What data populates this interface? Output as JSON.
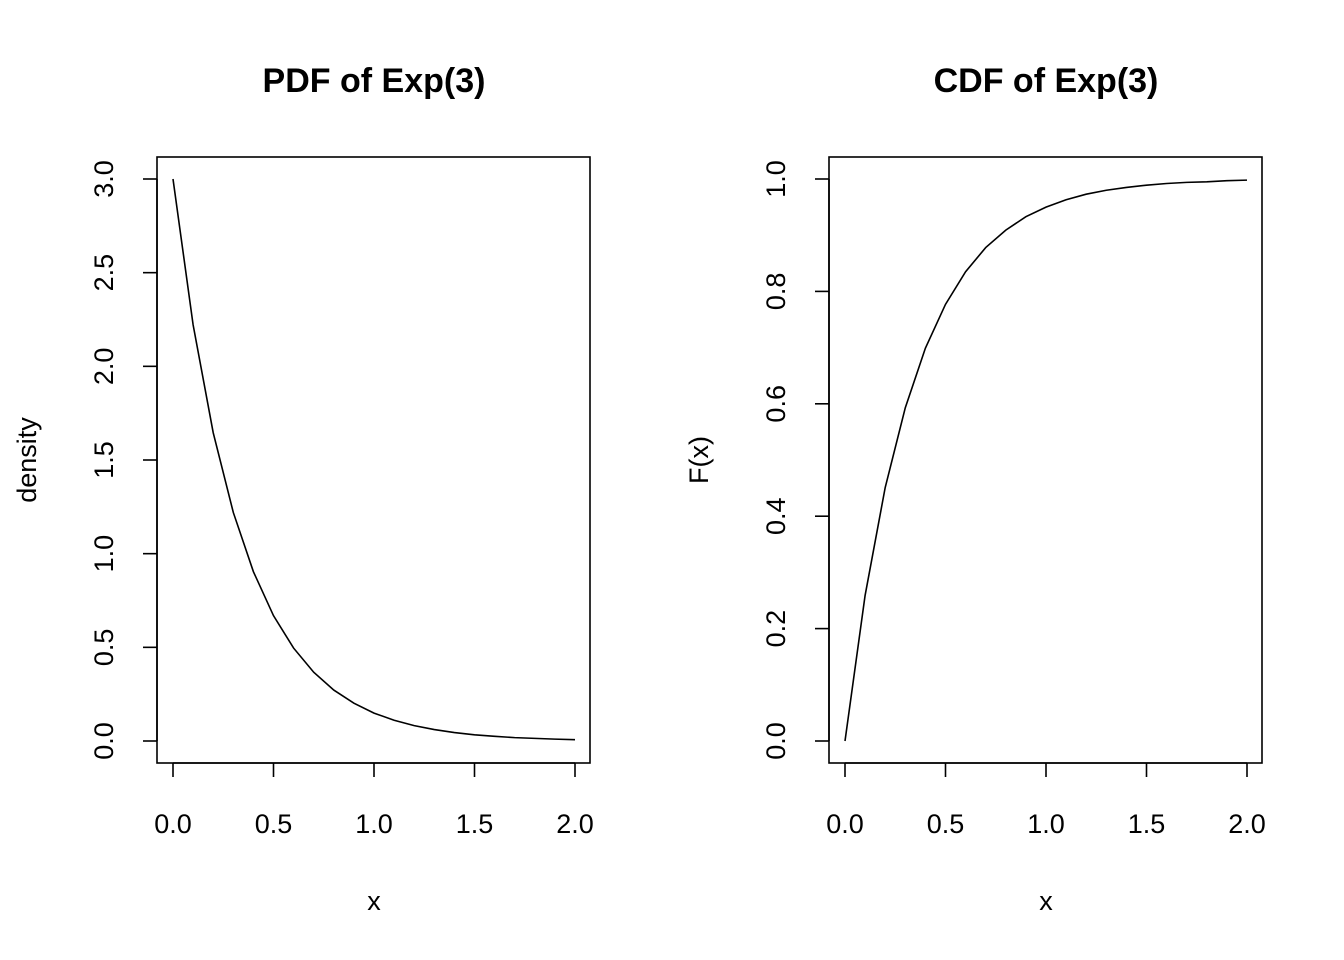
{
  "chart_data": [
    {
      "type": "line",
      "title": "PDF of Exp(3)",
      "xlabel": "x",
      "ylabel": "density",
      "xlim": [
        0,
        2
      ],
      "ylim": [
        0,
        3
      ],
      "x_ticks": [
        0.0,
        0.5,
        1.0,
        1.5,
        2.0
      ],
      "x_tick_labels": [
        "0.0",
        "0.5",
        "1.0",
        "1.5",
        "2.0"
      ],
      "y_ticks": [
        0.0,
        0.5,
        1.0,
        1.5,
        2.0,
        2.5,
        3.0
      ],
      "y_tick_labels": [
        "0.0",
        "0.5",
        "1.0",
        "1.5",
        "2.0",
        "2.5",
        "3.0"
      ],
      "grid": false,
      "series": [
        {
          "x": [
            0.0,
            0.1,
            0.2,
            0.3,
            0.4,
            0.5,
            0.6,
            0.7,
            0.8,
            0.9,
            1.0,
            1.1,
            1.2,
            1.3,
            1.4,
            1.5,
            1.6,
            1.7,
            1.8,
            1.9,
            2.0
          ],
          "y": [
            3.0,
            2.222,
            1.646,
            1.22,
            0.904,
            0.669,
            0.496,
            0.367,
            0.272,
            0.202,
            0.149,
            0.111,
            0.082,
            0.061,
            0.045,
            0.033,
            0.025,
            0.018,
            0.014,
            0.01,
            0.007
          ]
        }
      ]
    },
    {
      "type": "line",
      "title": "CDF of Exp(3)",
      "xlabel": "x",
      "ylabel": "F(x)",
      "xlim": [
        0,
        2
      ],
      "ylim": [
        0,
        1
      ],
      "x_ticks": [
        0.0,
        0.5,
        1.0,
        1.5,
        2.0
      ],
      "x_tick_labels": [
        "0.0",
        "0.5",
        "1.0",
        "1.5",
        "2.0"
      ],
      "y_ticks": [
        0.0,
        0.2,
        0.4,
        0.6,
        0.8,
        1.0
      ],
      "y_tick_labels": [
        "0.0",
        "0.2",
        "0.4",
        "0.6",
        "0.8",
        "1.0"
      ],
      "grid": false,
      "series": [
        {
          "x": [
            0.0,
            0.1,
            0.2,
            0.3,
            0.4,
            0.5,
            0.6,
            0.7,
            0.8,
            0.9,
            1.0,
            1.1,
            1.2,
            1.3,
            1.4,
            1.5,
            1.6,
            1.7,
            1.8,
            1.9,
            2.0
          ],
          "y": [
            0.0,
            0.259,
            0.451,
            0.593,
            0.699,
            0.777,
            0.835,
            0.878,
            0.909,
            0.933,
            0.95,
            0.963,
            0.973,
            0.98,
            0.985,
            0.989,
            0.992,
            0.994,
            0.995,
            0.997,
            0.998
          ]
        }
      ]
    }
  ]
}
